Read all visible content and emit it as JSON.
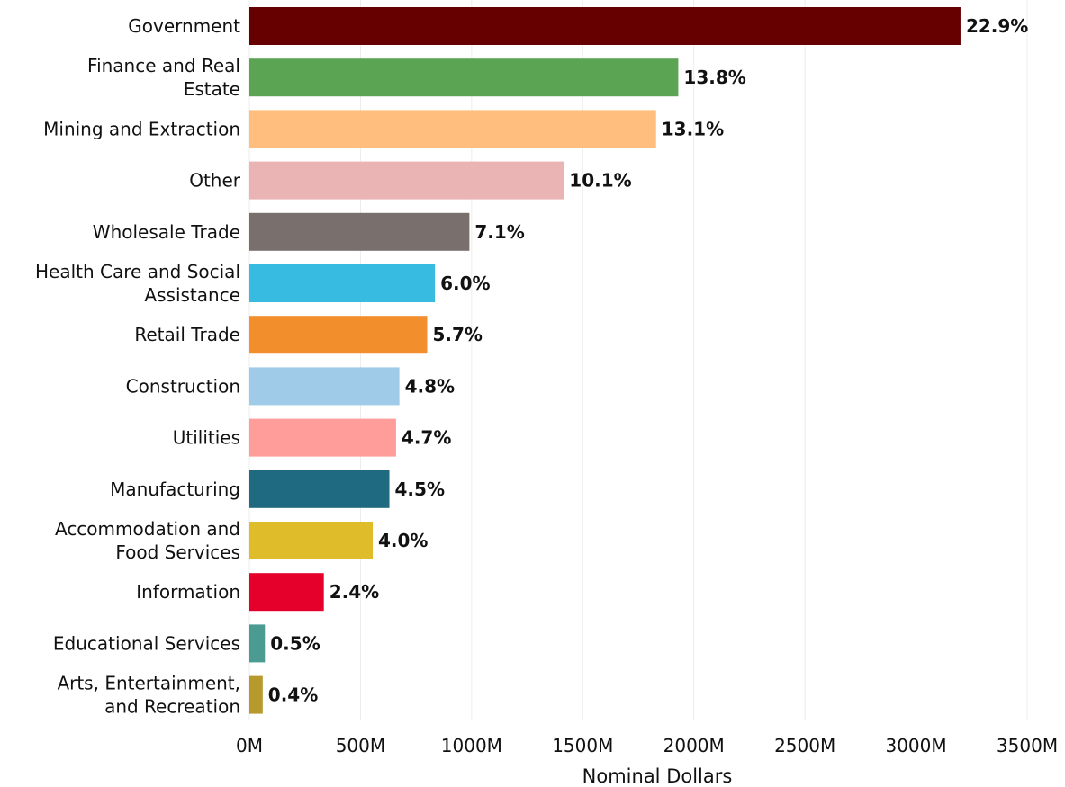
{
  "chart_data": {
    "type": "bar",
    "orientation": "horizontal",
    "xlabel": "Nominal Dollars",
    "ylabel": "",
    "xlim": [
      0,
      3500
    ],
    "grid": true,
    "ticks": [
      {
        "value": 0,
        "label": "0M"
      },
      {
        "value": 500,
        "label": "500M"
      },
      {
        "value": 1000,
        "label": "1000M"
      },
      {
        "value": 1500,
        "label": "1500M"
      },
      {
        "value": 2000,
        "label": "2000M"
      },
      {
        "value": 2500,
        "label": "2500M"
      },
      {
        "value": 3000,
        "label": "3000M"
      },
      {
        "value": 3500,
        "label": "3500M"
      }
    ],
    "bars": [
      {
        "label": [
          "Government"
        ],
        "value": 3200,
        "share": "22.9%",
        "color": "#660000"
      },
      {
        "label": [
          "Finance and Real",
          "Estate"
        ],
        "value": 1930,
        "share": "13.8%",
        "color": "#5ba453"
      },
      {
        "label": [
          "Mining and Extraction"
        ],
        "value": 1830,
        "share": "13.1%",
        "color": "#ffbe7d"
      },
      {
        "label": [
          "Other"
        ],
        "value": 1415,
        "share": "10.1%",
        "color": "#eab3b4"
      },
      {
        "label": [
          "Wholesale Trade"
        ],
        "value": 990,
        "share": "7.1%",
        "color": "#79706e"
      },
      {
        "label": [
          "Health Care and Social",
          "Assistance"
        ],
        "value": 835,
        "share": "6.0%",
        "color": "#37bbe0"
      },
      {
        "label": [
          "Retail Trade"
        ],
        "value": 800,
        "share": "5.7%",
        "color": "#f28e2c"
      },
      {
        "label": [
          "Construction"
        ],
        "value": 675,
        "share": "4.8%",
        "color": "#a0cbe8"
      },
      {
        "label": [
          "Utilities"
        ],
        "value": 660,
        "share": "4.7%",
        "color": "#ff9d9a"
      },
      {
        "label": [
          "Manufacturing"
        ],
        "value": 630,
        "share": "4.5%",
        "color": "#1f6a80"
      },
      {
        "label": [
          "Accommodation and",
          "Food Services"
        ],
        "value": 555,
        "share": "4.0%",
        "color": "#dfbc29"
      },
      {
        "label": [
          "Information"
        ],
        "value": 335,
        "share": "2.4%",
        "color": "#e4002b"
      },
      {
        "label": [
          "Educational Services"
        ],
        "value": 70,
        "share": "0.5%",
        "color": "#4b9b93"
      },
      {
        "label": [
          "Arts, Entertainment,",
          "and Recreation"
        ],
        "value": 60,
        "share": "0.4%",
        "color": "#b8992e"
      }
    ]
  }
}
